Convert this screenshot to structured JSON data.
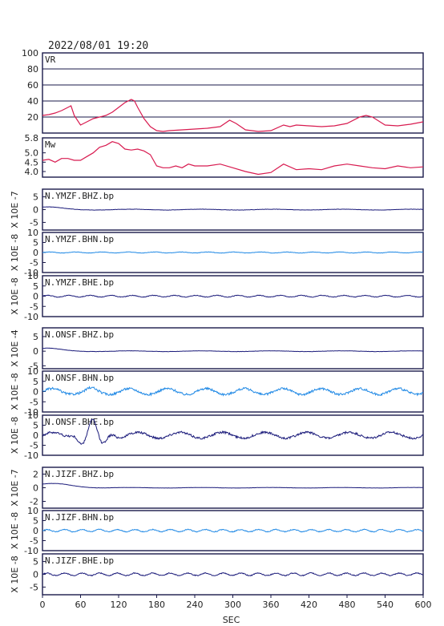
{
  "header": {
    "timestamp": "2022/08/01 19:20"
  },
  "chart_data": [
    {
      "type": "line",
      "panel": "vr",
      "label": "VR",
      "ylim": [
        0,
        100
      ],
      "yticks": [
        "100",
        "80",
        "60",
        "40",
        "20"
      ],
      "grid": true,
      "color": "#d81b50",
      "series": [
        {
          "x": [
            0,
            10,
            20,
            30,
            40,
            45,
            50,
            60,
            70,
            80,
            90,
            100,
            110,
            120,
            130,
            140,
            145,
            150,
            160,
            170,
            180,
            190,
            200,
            220,
            240,
            260,
            280,
            295,
            305,
            320,
            340,
            360,
            380,
            390,
            400,
            420,
            440,
            460,
            480,
            500,
            510,
            520,
            540,
            560,
            580,
            600
          ],
          "y": [
            22,
            23,
            25,
            28,
            32,
            34,
            22,
            10,
            14,
            18,
            20,
            22,
            26,
            32,
            38,
            42,
            40,
            32,
            18,
            8,
            3,
            2,
            3,
            4,
            5,
            6,
            8,
            16,
            12,
            4,
            2,
            3,
            10,
            8,
            10,
            9,
            8,
            9,
            12,
            20,
            22,
            20,
            10,
            9,
            11,
            14
          ]
        }
      ]
    },
    {
      "type": "line",
      "panel": "mw",
      "label": "Mw",
      "ylim": [
        3.7,
        5.8
      ],
      "yticks": [
        "5.8",
        "5.0",
        "4.5",
        "4.0"
      ],
      "ytick_values": [
        5.8,
        5.0,
        4.5,
        4.0
      ],
      "grid": false,
      "color": "#d81b50",
      "series": [
        {
          "x": [
            0,
            10,
            20,
            30,
            40,
            50,
            60,
            70,
            80,
            90,
            100,
            110,
            120,
            130,
            140,
            150,
            160,
            170,
            180,
            190,
            200,
            210,
            220,
            230,
            240,
            260,
            280,
            300,
            320,
            340,
            360,
            380,
            400,
            420,
            440,
            460,
            480,
            500,
            520,
            540,
            560,
            580,
            600
          ],
          "y": [
            4.6,
            4.65,
            4.5,
            4.7,
            4.7,
            4.6,
            4.6,
            4.8,
            5.0,
            5.3,
            5.4,
            5.6,
            5.5,
            5.2,
            5.15,
            5.2,
            5.1,
            4.9,
            4.3,
            4.2,
            4.2,
            4.3,
            4.2,
            4.4,
            4.3,
            4.3,
            4.4,
            4.2,
            4.0,
            3.85,
            3.95,
            4.4,
            4.1,
            4.15,
            4.1,
            4.3,
            4.4,
            4.3,
            4.2,
            4.15,
            4.3,
            4.2,
            4.25
          ]
        }
      ]
    },
    {
      "type": "line",
      "panel": "trace",
      "label": "N.YMZF.BHZ.bp",
      "unit": "X 10E -7",
      "ylim": [
        -8,
        8
      ],
      "yticks": [
        "5",
        "0",
        "-5"
      ],
      "ytick_values": [
        5,
        0,
        -5
      ],
      "color": "#1a1a7a",
      "amp": 0.2,
      "freq": 0.03,
      "burst": 1.0,
      "burstAt": 5,
      "burstW": 30,
      "decay": true
    },
    {
      "type": "line",
      "panel": "trace",
      "label": "N.YMZF.BHN.bp",
      "unit": "X 10E -8",
      "ylim": [
        -10,
        10
      ],
      "yticks": [
        "10",
        "5",
        "0",
        "-5",
        "-10"
      ],
      "ytick_values": [
        10,
        5,
        0,
        -5,
        -10
      ],
      "color": "#1e88e5",
      "amp": 0.3,
      "freq": 0.08,
      "burst": 0,
      "burstAt": 0,
      "burstW": 1,
      "decay": false
    },
    {
      "type": "line",
      "panel": "trace",
      "label": "N.YMZF.BHE.bp",
      "unit": "X 10E -8",
      "ylim": [
        -10,
        10
      ],
      "yticks": [
        "10",
        "5",
        "0",
        "-5",
        "-10"
      ],
      "ytick_values": [
        10,
        5,
        0,
        -5,
        -10
      ],
      "color": "#1a1a7a",
      "amp": 0.5,
      "freq": 0.1,
      "burst": 0,
      "burstAt": 0,
      "burstW": 1,
      "decay": false
    },
    {
      "type": "line",
      "panel": "trace",
      "label": "N.ONSF.BHZ.bp",
      "unit": "X 10E -4",
      "ylim": [
        -6,
        8
      ],
      "yticks": [
        "5",
        "0",
        "-5"
      ],
      "ytick_values": [
        5,
        0,
        -5
      ],
      "color": "#1a1a7a",
      "amp": 0.15,
      "freq": 0.03,
      "burst": 1.0,
      "burstAt": 5,
      "burstW": 30,
      "decay": true
    },
    {
      "type": "line",
      "panel": "trace",
      "label": "N.ONSF.BHN.bp",
      "unit": "X 10E -8",
      "ylim": [
        -10,
        10
      ],
      "yticks": [
        "10",
        "5",
        "0",
        "-5",
        "-10"
      ],
      "ytick_values": [
        10,
        5,
        0,
        -5,
        -10
      ],
      "color": "#1e88e5",
      "amp": 1.8,
      "freq": 0.055,
      "burst": 0.6,
      "burstAt": 70,
      "burstW": 20,
      "decay": false
    },
    {
      "type": "line",
      "panel": "trace",
      "label": "N.ONSF.BHE.bp",
      "unit": "X 10E -8",
      "ylim": [
        -10,
        10
      ],
      "yticks": [
        "10",
        "5",
        "0",
        "-5",
        "-10"
      ],
      "ytick_values": [
        10,
        5,
        0,
        -5,
        -10
      ],
      "color": "#1a1a7a",
      "amp": 1.8,
      "freq": 0.05,
      "burst": 6.5,
      "burstAt": 80,
      "burstW": 25,
      "decay": false
    },
    {
      "type": "line",
      "panel": "trace",
      "label": "N.JIZF.BHZ.bp",
      "unit": "X 10E -7",
      "ylim": [
        -3,
        3
      ],
      "yticks": [
        "2",
        "0",
        "-2"
      ],
      "ytick_values": [
        2,
        0,
        -2
      ],
      "color": "#1a1a7a",
      "amp": 0.05,
      "freq": 0.03,
      "burst": 0.6,
      "burstAt": 15,
      "burstW": 40,
      "decay": true
    },
    {
      "type": "line",
      "panel": "trace",
      "label": "N.JIZF.BHN.bp",
      "unit": "X 10E -8",
      "ylim": [
        -10,
        10
      ],
      "yticks": [
        "10",
        "5",
        "0",
        "-5",
        "-10"
      ],
      "ytick_values": [
        10,
        5,
        0,
        -5,
        -10
      ],
      "color": "#1e88e5",
      "amp": 0.7,
      "freq": 0.12,
      "burst": 0,
      "burstAt": 0,
      "burstW": 1,
      "decay": false
    },
    {
      "type": "line",
      "panel": "trace",
      "label": "N.JIZF.BHE.bp",
      "unit": "X 10E -8",
      "ylim": [
        -8,
        8
      ],
      "yticks": [
        "5",
        "0",
        "-5"
      ],
      "ytick_values": [
        5,
        0,
        -5
      ],
      "color": "#1a1a7a",
      "amp": 0.6,
      "freq": 0.12,
      "burst": 0,
      "burstAt": 0,
      "burstW": 1,
      "decay": false
    }
  ],
  "x_axis": {
    "label": "SEC",
    "xlim": [
      0,
      600
    ],
    "ticks": [
      0,
      60,
      120,
      180,
      240,
      300,
      360,
      420,
      480,
      540,
      600
    ]
  }
}
